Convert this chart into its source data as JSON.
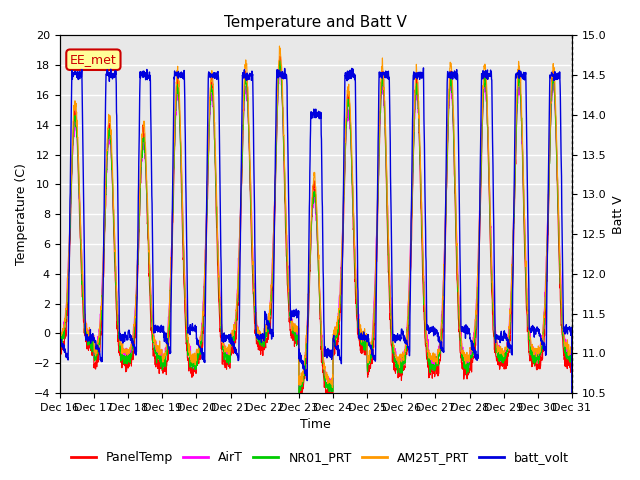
{
  "title": "Temperature and Batt V",
  "xlabel": "Time",
  "ylabel_left": "Temperature (C)",
  "ylabel_right": "Batt V",
  "ylim_left": [
    -4,
    20
  ],
  "ylim_right": [
    10.5,
    15.0
  ],
  "xlim": [
    0,
    15
  ],
  "xtick_labels": [
    "Dec 16",
    "Dec 17",
    "Dec 18",
    "Dec 19",
    "Dec 20",
    "Dec 21",
    "Dec 22",
    "Dec 23",
    "Dec 24",
    "Dec 25",
    "Dec 26",
    "Dec 27",
    "Dec 28",
    "Dec 29",
    "Dec 30",
    "Dec 31"
  ],
  "yticks_left": [
    -4,
    -2,
    0,
    2,
    4,
    6,
    8,
    10,
    12,
    14,
    16,
    18,
    20
  ],
  "yticks_right": [
    10.5,
    11.0,
    11.5,
    12.0,
    12.5,
    13.0,
    13.5,
    14.0,
    14.5,
    15.0
  ],
  "colors": {
    "PanelTemp": "#ff0000",
    "AirT": "#ff00ff",
    "NR01_PRT": "#00cc00",
    "AM25T_PRT": "#ff9900",
    "batt_volt": "#0000dd"
  },
  "annotation_text": "EE_met",
  "annotation_fg": "#cc0000",
  "annotation_bg": "#ffff99",
  "background_color": "#e8e8e8",
  "grid_color": "#ffffff",
  "title_fontsize": 11,
  "label_fontsize": 9,
  "tick_fontsize": 8,
  "legend_fontsize": 9
}
